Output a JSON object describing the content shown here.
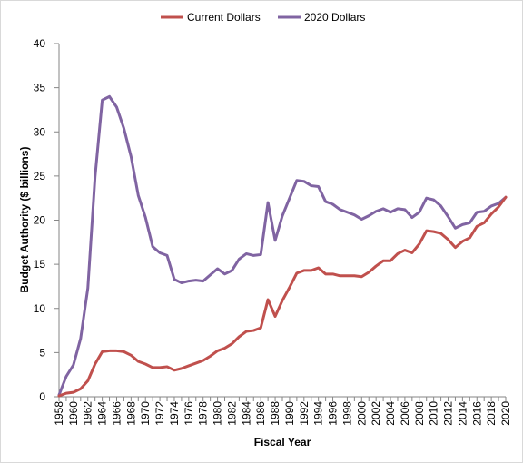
{
  "chart_data": {
    "type": "line",
    "title": "",
    "xlabel": "Fiscal Year",
    "ylabel": "Budget Authority ($ billions)",
    "ylim": [
      0,
      40
    ],
    "yticks": [
      "0",
      "5",
      "10",
      "15",
      "20",
      "25",
      "30",
      "35",
      "40"
    ],
    "xticks": [
      "1958",
      "1960",
      "1962",
      "1964",
      "1966",
      "1968",
      "1970",
      "1972",
      "1974",
      "1976",
      "1978",
      "1980",
      "1982",
      "1984",
      "1986",
      "1988",
      "1990",
      "1992",
      "1994",
      "1996",
      "1998",
      "2000",
      "2002",
      "2004",
      "2006",
      "2008",
      "2010",
      "2012",
      "2014",
      "2016",
      "2018",
      "2020"
    ],
    "grid": false,
    "legend": "top",
    "colors": {
      "current": "#c0504d",
      "constant": "#8064a2",
      "axis": "#868686"
    },
    "x": [
      1958,
      1959,
      1960,
      1961,
      1962,
      1963,
      1964,
      1965,
      1966,
      1967,
      1968,
      1969,
      1970,
      1971,
      1972,
      1973,
      1974,
      1975,
      1976,
      1977,
      1978,
      1979,
      1980,
      1981,
      1982,
      1983,
      1984,
      1985,
      1986,
      1987,
      1988,
      1989,
      1990,
      1991,
      1992,
      1993,
      1994,
      1995,
      1996,
      1997,
      1998,
      1999,
      2000,
      2001,
      2002,
      2003,
      2004,
      2005,
      2006,
      2007,
      2008,
      2009,
      2010,
      2011,
      2012,
      2013,
      2014,
      2015,
      2016,
      2017,
      2018,
      2019,
      2020
    ],
    "series": [
      {
        "name": "Current Dollars",
        "values": [
          0.1,
          0.4,
          0.5,
          0.9,
          1.8,
          3.7,
          5.1,
          5.2,
          5.2,
          5.1,
          4.7,
          4.0,
          3.7,
          3.3,
          3.3,
          3.4,
          3.0,
          3.2,
          3.5,
          3.8,
          4.1,
          4.6,
          5.2,
          5.5,
          6.0,
          6.8,
          7.4,
          7.5,
          7.8,
          11.0,
          9.1,
          10.9,
          12.4,
          14.0,
          14.3,
          14.3,
          14.6,
          13.9,
          13.9,
          13.7,
          13.7,
          13.7,
          13.6,
          14.1,
          14.8,
          15.4,
          15.4,
          16.2,
          16.6,
          16.3,
          17.3,
          18.8,
          18.7,
          18.5,
          17.8,
          16.9,
          17.6,
          18.0,
          19.3,
          19.7,
          20.7,
          21.5,
          22.6
        ]
      },
      {
        "name": "2020 Dollars",
        "values": [
          0.2,
          2.3,
          3.6,
          6.6,
          12.3,
          24.9,
          33.6,
          34.0,
          32.8,
          30.4,
          27.2,
          22.8,
          20.3,
          17.0,
          16.3,
          16.0,
          13.3,
          12.9,
          13.1,
          13.2,
          13.1,
          13.8,
          14.5,
          13.9,
          14.3,
          15.6,
          16.2,
          16.0,
          16.1,
          22.0,
          17.7,
          20.5,
          22.5,
          24.5,
          24.4,
          23.9,
          23.8,
          22.1,
          21.8,
          21.2,
          20.9,
          20.6,
          20.1,
          20.5,
          21.0,
          21.3,
          20.9,
          21.3,
          21.2,
          20.3,
          20.9,
          22.5,
          22.3,
          21.6,
          20.4,
          19.1,
          19.5,
          19.7,
          20.9,
          21.0,
          21.6,
          21.9,
          22.6
        ]
      }
    ]
  }
}
